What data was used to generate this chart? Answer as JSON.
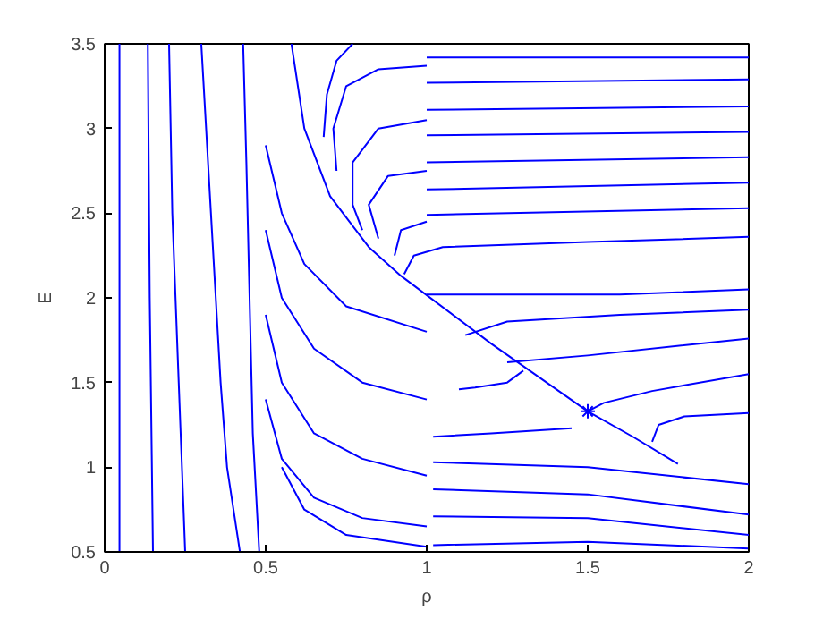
{
  "chart_data": {
    "type": "line",
    "xlabel": "ρ",
    "ylabel": "E",
    "xlim": [
      0,
      2
    ],
    "ylim": [
      0.5,
      3.5
    ],
    "xticks": [
      0,
      0.5,
      1,
      1.5,
      2
    ],
    "yticks": [
      0.5,
      1,
      1.5,
      2,
      2.5,
      3,
      3.5
    ],
    "grid": false,
    "marker": "none",
    "line_style": "solid",
    "series": [
      {
        "color": "#0000ff",
        "x": [
          0.046,
          0.046
        ],
        "values": [
          3.5,
          0.5
        ]
      },
      {
        "color": "#0000ff",
        "x": [
          0.134,
          0.14,
          0.15
        ],
        "values": [
          3.5,
          2.0,
          0.5
        ]
      },
      {
        "color": "#0000ff",
        "x": [
          0.2,
          0.21,
          0.23,
          0.25
        ],
        "values": [
          3.5,
          2.5,
          1.5,
          0.5
        ]
      },
      {
        "color": "#0000ff",
        "x": [
          0.3,
          0.33,
          0.36,
          0.38,
          0.42
        ],
        "values": [
          3.5,
          2.5,
          1.5,
          1.0,
          0.5
        ]
      },
      {
        "color": "#0000ff",
        "x": [
          0.43,
          0.44,
          0.45,
          0.46,
          0.48
        ],
        "values": [
          3.5,
          2.8,
          2.0,
          1.2,
          0.5
        ]
      },
      {
        "color": "#0000ff",
        "x": [
          0.58,
          0.62,
          0.7,
          0.82,
          0.92,
          1.2,
          1.5
        ],
        "values": [
          3.5,
          3.0,
          2.6,
          2.3,
          2.13,
          1.73,
          1.33
        ]
      },
      {
        "color": "#0000ff",
        "x": [
          0.5,
          0.55,
          0.62,
          0.75,
          1.0
        ],
        "values": [
          2.9,
          2.5,
          2.2,
          1.95,
          1.8
        ]
      },
      {
        "color": "#0000ff",
        "x": [
          0.5,
          0.55,
          0.65,
          0.8,
          1.0
        ],
        "values": [
          2.4,
          2.0,
          1.7,
          1.5,
          1.4
        ]
      },
      {
        "color": "#0000ff",
        "x": [
          0.5,
          0.55,
          0.65,
          0.8,
          1.0
        ],
        "values": [
          1.9,
          1.5,
          1.2,
          1.05,
          0.95
        ]
      },
      {
        "color": "#0000ff",
        "x": [
          0.5,
          0.55,
          0.65,
          0.8,
          1.0
        ],
        "values": [
          1.4,
          1.05,
          0.82,
          0.7,
          0.65
        ]
      },
      {
        "color": "#0000ff",
        "x": [
          0.55,
          0.62,
          0.75,
          1.0
        ],
        "values": [
          1.0,
          0.75,
          0.6,
          0.53
        ]
      },
      {
        "color": "#0000ff",
        "x": [
          0.77,
          0.72,
          0.69,
          0.68
        ],
        "values": [
          3.5,
          3.4,
          3.2,
          2.95
        ]
      },
      {
        "color": "#0000ff",
        "x": [
          1.0,
          0.85,
          0.75,
          0.71,
          0.72
        ],
        "values": [
          3.37,
          3.35,
          3.25,
          3.0,
          2.75
        ]
      },
      {
        "color": "#0000ff",
        "x": [
          1.0,
          0.85,
          0.77,
          0.77,
          0.8
        ],
        "values": [
          3.05,
          3.0,
          2.8,
          2.55,
          2.4
        ]
      },
      {
        "color": "#0000ff",
        "x": [
          1.0,
          0.88,
          0.82,
          0.85
        ],
        "values": [
          2.75,
          2.72,
          2.55,
          2.35
        ]
      },
      {
        "color": "#0000ff",
        "x": [
          1.0,
          0.92,
          0.9
        ],
        "values": [
          2.45,
          2.4,
          2.25
        ]
      },
      {
        "color": "#0000ff",
        "x": [
          1.0,
          2.0
        ],
        "values": [
          3.42,
          3.42
        ]
      },
      {
        "color": "#0000ff",
        "x": [
          1.0,
          2.0
        ],
        "values": [
          3.27,
          3.29
        ]
      },
      {
        "color": "#0000ff",
        "x": [
          1.0,
          2.0
        ],
        "values": [
          3.11,
          3.13
        ]
      },
      {
        "color": "#0000ff",
        "x": [
          1.0,
          2.0
        ],
        "values": [
          2.96,
          2.98
        ]
      },
      {
        "color": "#0000ff",
        "x": [
          1.0,
          2.0
        ],
        "values": [
          2.8,
          2.83
        ]
      },
      {
        "color": "#0000ff",
        "x": [
          1.0,
          2.0
        ],
        "values": [
          2.64,
          2.68
        ]
      },
      {
        "color": "#0000ff",
        "x": [
          1.0,
          2.0
        ],
        "values": [
          2.49,
          2.53
        ]
      },
      {
        "color": "#0000ff",
        "x": [
          0.93,
          0.96,
          1.05,
          1.5,
          2.0
        ],
        "values": [
          2.14,
          2.25,
          2.3,
          2.33,
          2.36
        ]
      },
      {
        "color": "#0000ff",
        "x": [
          1.0,
          1.3,
          1.6,
          2.0
        ],
        "values": [
          2.02,
          2.02,
          2.02,
          2.05
        ]
      },
      {
        "color": "#0000ff",
        "x": [
          1.12,
          1.25,
          1.6,
          2.0
        ],
        "values": [
          1.78,
          1.86,
          1.9,
          1.93
        ]
      },
      {
        "color": "#0000ff",
        "x": [
          1.25,
          1.5,
          2.0
        ],
        "values": [
          1.62,
          1.66,
          1.76
        ]
      },
      {
        "color": "#0000ff",
        "x": [
          1.3,
          1.25,
          1.15,
          1.1
        ],
        "values": [
          1.57,
          1.5,
          1.47,
          1.46
        ]
      },
      {
        "color": "#0000ff",
        "x": [
          1.5,
          1.55,
          1.7,
          2.0
        ],
        "values": [
          1.33,
          1.38,
          1.45,
          1.55
        ]
      },
      {
        "color": "#0000ff",
        "x": [
          1.78,
          1.64,
          1.5
        ],
        "values": [
          1.02,
          1.18,
          1.33
        ]
      },
      {
        "color": "#0000ff",
        "x": [
          1.45,
          1.2,
          1.02
        ],
        "values": [
          1.23,
          1.2,
          1.18
        ]
      },
      {
        "color": "#0000ff",
        "x": [
          2.0,
          1.5,
          1.02
        ],
        "values": [
          0.9,
          1.0,
          1.03
        ]
      },
      {
        "color": "#0000ff",
        "x": [
          2.0,
          1.5,
          1.02
        ],
        "values": [
          0.72,
          0.84,
          0.87
        ]
      },
      {
        "color": "#0000ff",
        "x": [
          2.0,
          1.5,
          1.02
        ],
        "values": [
          0.6,
          0.7,
          0.71
        ]
      },
      {
        "color": "#0000ff",
        "x": [
          2.0,
          1.5,
          1.02
        ],
        "values": [
          0.52,
          0.56,
          0.54
        ]
      },
      {
        "color": "#0000ff",
        "x": [
          1.7,
          1.72,
          1.8,
          2.0
        ],
        "values": [
          1.15,
          1.25,
          1.3,
          1.32
        ]
      },
      {
        "type": "scatter",
        "marker": "cross",
        "color": "#0000ff",
        "x": [
          1.5
        ],
        "values": [
          1.33
        ]
      }
    ]
  }
}
